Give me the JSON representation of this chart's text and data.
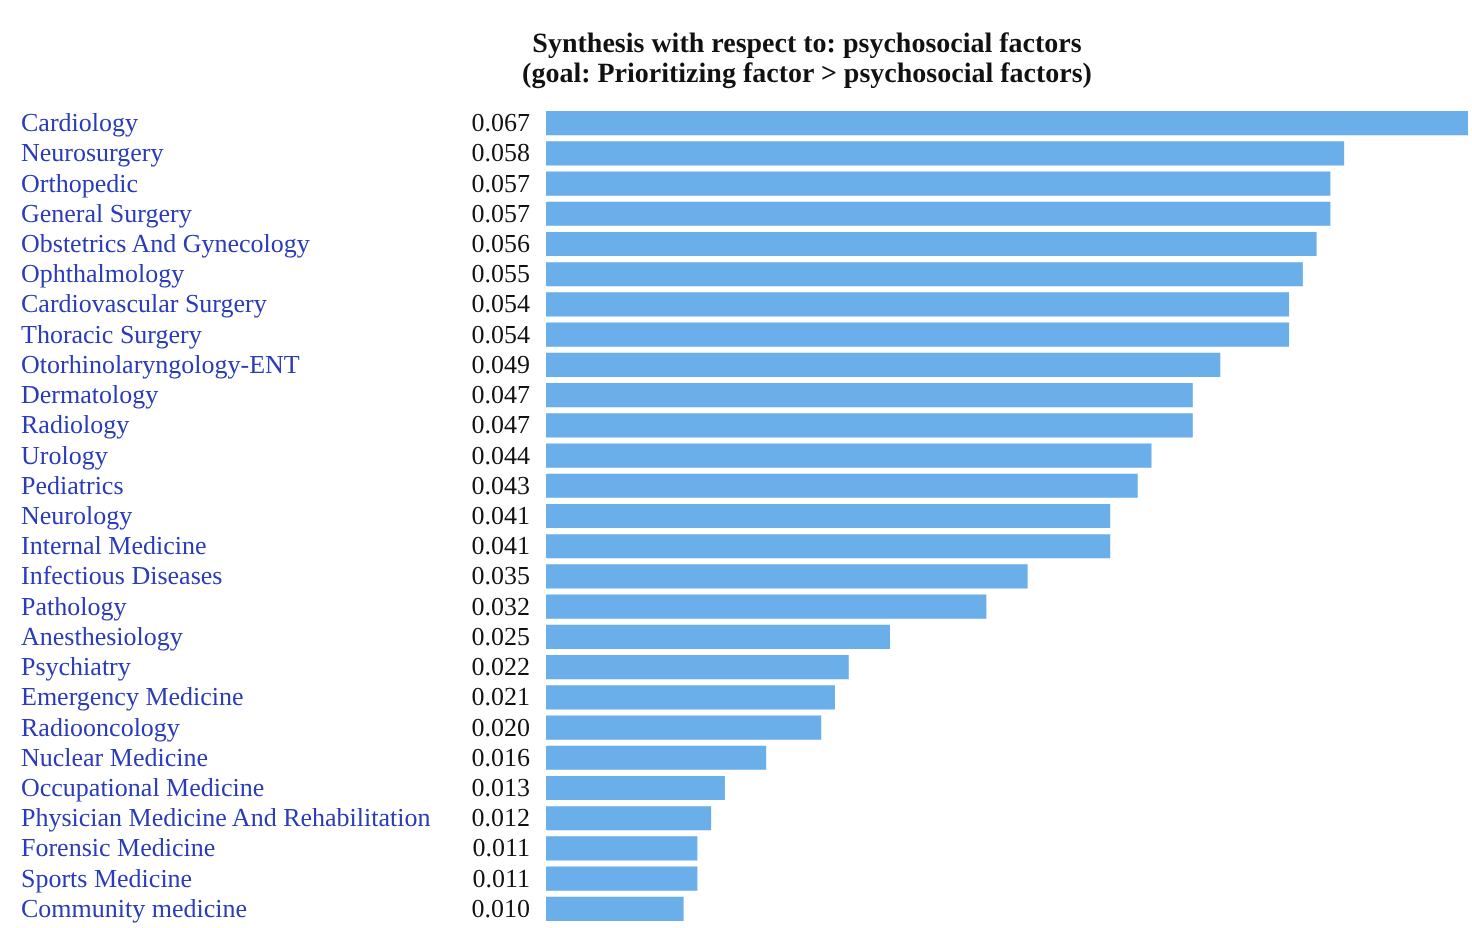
{
  "chart_data": {
    "type": "bar",
    "orientation": "horizontal",
    "title": "Synthesis with respect to: psychosocial factors",
    "subtitle": "(goal: Prioritizing factor > psychosocial factors)",
    "categories": [
      "Cardiology",
      "Neurosurgery",
      "Orthopedic",
      "General Surgery",
      "Obstetrics And Gynecology",
      "Ophthalmology",
      "Cardiovascular Surgery",
      "Thoracic Surgery",
      "Otorhinolaryngology-ENT",
      "Dermatology",
      "Radiology",
      "Urology",
      "Pediatrics",
      "Neurology",
      "Internal Medicine",
      "Infectious Diseases",
      "Pathology",
      "Anesthesiology",
      "Psychiatry",
      "Emergency Medicine",
      "Radiooncology",
      "Nuclear Medicine",
      "Occupational Medicine",
      "Physician Medicine And Rehabilitation",
      "Forensic Medicine",
      "Sports Medicine",
      "Community medicine"
    ],
    "values": [
      0.067,
      0.058,
      0.057,
      0.057,
      0.056,
      0.055,
      0.054,
      0.054,
      0.049,
      0.047,
      0.047,
      0.044,
      0.043,
      0.041,
      0.041,
      0.035,
      0.032,
      0.025,
      0.022,
      0.021,
      0.02,
      0.016,
      0.013,
      0.012,
      0.011,
      0.011,
      0.01
    ],
    "value_labels": [
      "0.067",
      "0.058",
      "0.057",
      "0.057",
      "0.056",
      "0.055",
      "0.054",
      "0.054",
      "0.049",
      "0.047",
      "0.047",
      "0.044",
      "0.043",
      "0.041",
      "0.041",
      "0.035",
      "0.032",
      "0.025",
      "0.022",
      "0.021",
      "0.020",
      "0.016",
      "0.013",
      "0.012",
      "0.011",
      "0.011",
      "0.010"
    ],
    "color": "#6aaeea"
  }
}
